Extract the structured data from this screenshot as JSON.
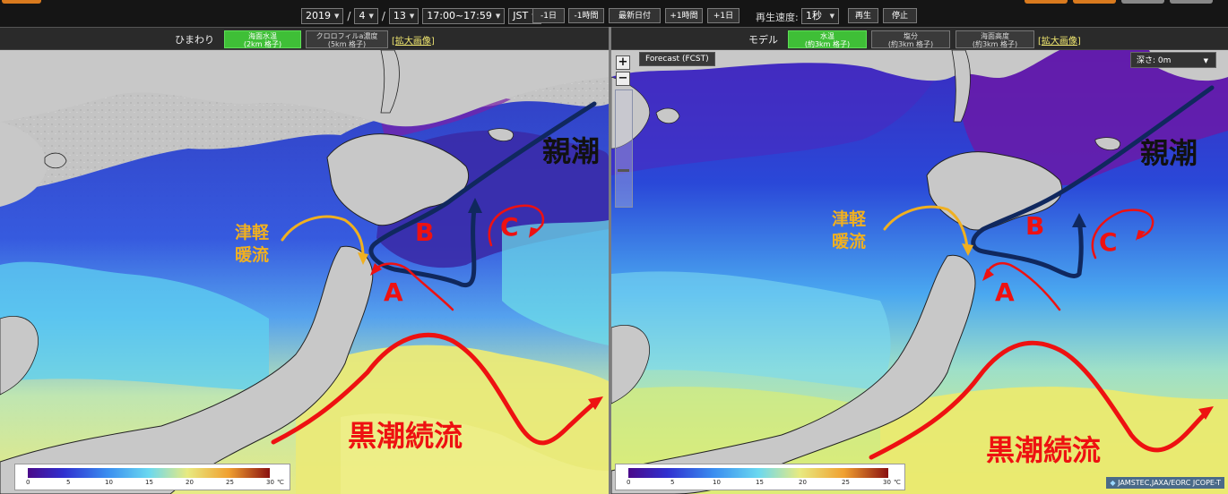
{
  "toolbar": {
    "year": "2019",
    "month": "4",
    "day": "13",
    "time": "17:00~17:59",
    "timezone": "JST",
    "buttons": [
      "-1日",
      "-1時間",
      "最新日付",
      "+1時間",
      "+1日"
    ],
    "speed_label": "再生速度:",
    "speed_value": "1秒",
    "play_label": "再生",
    "stop_label": "停止"
  },
  "left_panel": {
    "source_label": "ひまわり",
    "tab_active": "海面水温\n(2km 格子)",
    "tab_other": "クロロフィルa濃度\n(5km 格子)",
    "enlarge_label": "拡大画像"
  },
  "right_panel": {
    "source_label": "モデル",
    "tab_active": "水温\n(約3km 格子)",
    "tab_salinity": "塩分\n(約3km 格子)",
    "tab_height": "海面高度\n(約3km 格子)",
    "enlarge_label": "拡大画像",
    "forecast_label": "Forecast (FCST)",
    "depth_label": "深さ: 0m",
    "zoom_in": "+",
    "zoom_out": "−",
    "credit": "JAMSTEC,JAXA/EORC JCOPE-T"
  },
  "annotations": {
    "oyashio": "親潮",
    "tsugaru_line1": "津軽",
    "tsugaru_line2": "暖流",
    "kuroshio": "黒潮続流",
    "label_a": "A",
    "label_b": "B",
    "label_c": "C"
  },
  "colorbar": {
    "ticks": [
      "0",
      "5",
      "10",
      "15",
      "20",
      "25",
      "30"
    ],
    "unit": "℃"
  },
  "colors": {
    "oyashio_arrow": "#10285e",
    "tsugaru_arrow": "#f0b020",
    "kuroshio_arrow": "#ee1111",
    "eddy_arrow": "#ee1111",
    "active_tab": "#3fbf37",
    "land": "#c8c8c8"
  }
}
